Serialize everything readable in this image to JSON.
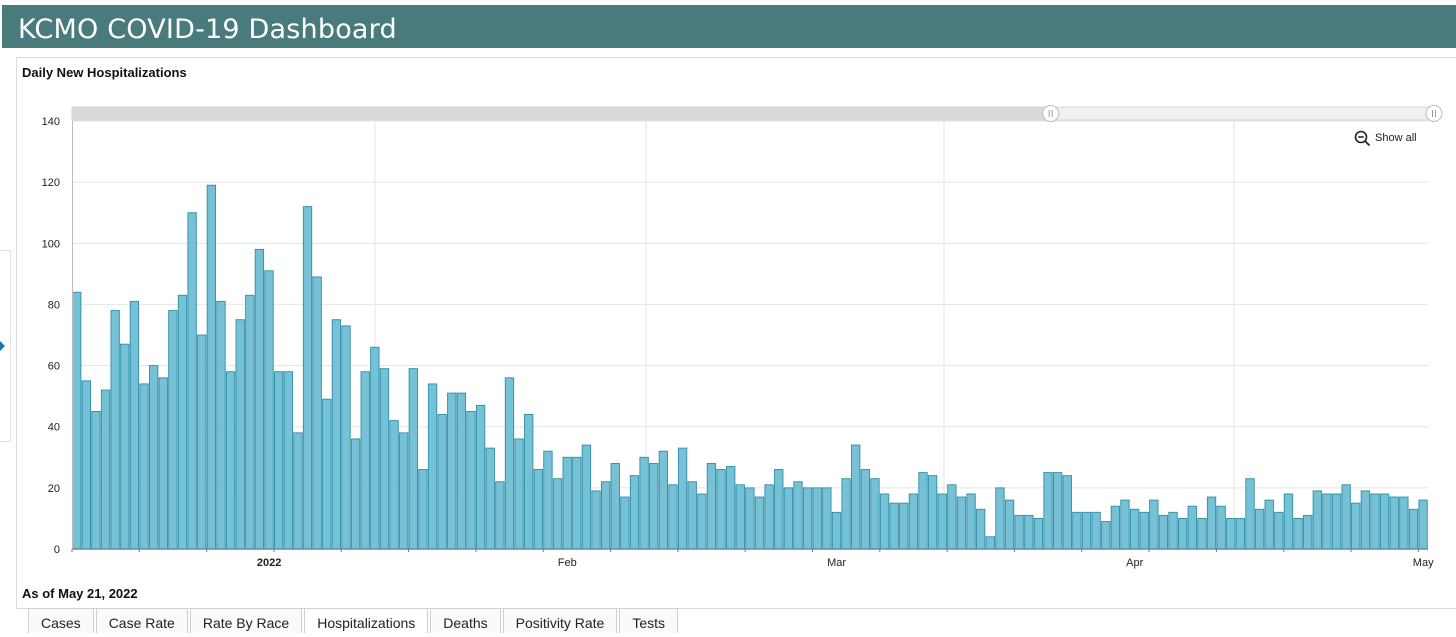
{
  "header": {
    "title": "KCMO COVID-19 Dashboard"
  },
  "chart": {
    "title": "Daily New Hospitalizations",
    "show_all_label": "Show all",
    "as_of": "As of May 21, 2022"
  },
  "tabs": [
    {
      "label": "Cases"
    },
    {
      "label": "Case Rate"
    },
    {
      "label": "Rate By Race"
    },
    {
      "label": "Hospitalizations",
      "active": true
    },
    {
      "label": "Deaths"
    },
    {
      "label": "Positivity Rate"
    },
    {
      "label": "Tests"
    }
  ],
  "colors": {
    "bar_fill": "#76c1d5",
    "bar_stroke": "#2f8fa8",
    "header_bg": "#4a7b7c"
  },
  "chart_data": {
    "type": "bar",
    "title": "Daily New Hospitalizations",
    "ylim": [
      0,
      140
    ],
    "y_ticks": [
      0,
      20,
      40,
      60,
      80,
      100,
      120,
      140
    ],
    "x_tick_labels": [
      {
        "label": "2022",
        "bold": true,
        "day_index": 20
      },
      {
        "label": "Feb",
        "bold": false,
        "day_index": 51
      },
      {
        "label": "Mar",
        "bold": false,
        "day_index": 79
      },
      {
        "label": "Apr",
        "bold": false,
        "day_index": 110
      },
      {
        "label": "May",
        "bold": false,
        "day_index": 140
      }
    ],
    "grid": true,
    "range_slider": {
      "start_fraction": 0.7175,
      "end_fraction": 1.0
    },
    "values": [
      84,
      55,
      45,
      52,
      78,
      67,
      81,
      54,
      60,
      56,
      78,
      83,
      110,
      70,
      119,
      81,
      58,
      75,
      83,
      98,
      91,
      58,
      58,
      38,
      112,
      89,
      49,
      75,
      73,
      36,
      58,
      66,
      59,
      42,
      38,
      59,
      26,
      54,
      44,
      51,
      51,
      45,
      47,
      33,
      22,
      56,
      36,
      44,
      26,
      32,
      23,
      30,
      30,
      34,
      19,
      22,
      28,
      17,
      24,
      30,
      28,
      32,
      21,
      33,
      22,
      18,
      28,
      26,
      27,
      21,
      20,
      17,
      21,
      26,
      20,
      22,
      20,
      20,
      20,
      12,
      23,
      34,
      26,
      23,
      18,
      15,
      15,
      18,
      25,
      24,
      18,
      21,
      17,
      18,
      13,
      4,
      20,
      16,
      11,
      11,
      10,
      25,
      25,
      24,
      12,
      12,
      12,
      9,
      14,
      16,
      13,
      12,
      16,
      11,
      12,
      10,
      14,
      10,
      17,
      14,
      10,
      10,
      23,
      13,
      16,
      12,
      18,
      10,
      11,
      19,
      18,
      18,
      21,
      15,
      19,
      18,
      18,
      17,
      17,
      13,
      16
    ]
  }
}
